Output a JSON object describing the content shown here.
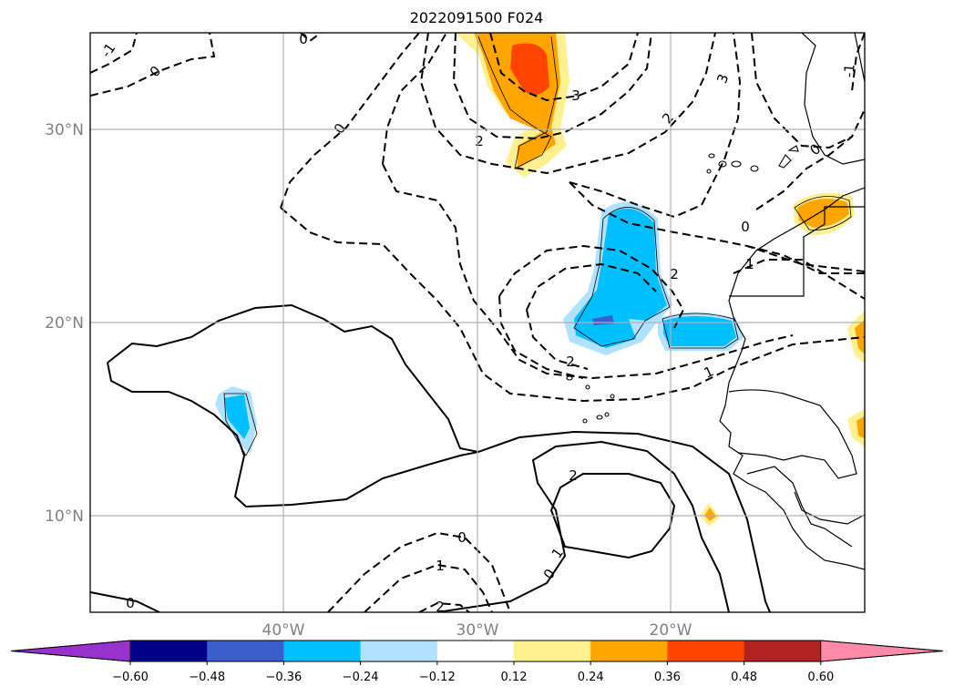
{
  "title": "2022091500 F024",
  "lat_labels": [
    "30°N",
    "20°N",
    "10°N"
  ],
  "lon_labels": [
    "40°W",
    "30°W",
    "20°W"
  ],
  "colorbar": {
    "ticks": [
      "−0.60",
      "−0.48",
      "−0.36",
      "−0.24",
      "−0.12",
      "0.12",
      "0.24",
      "0.36",
      "0.48",
      "0.60"
    ],
    "colors": [
      "#9932cc",
      "#00008b",
      "#3a5fcd",
      "#00bfff",
      "#b0e2ff",
      "#ffffff",
      "#fff08f",
      "#ffa500",
      "#ff4500",
      "#b22222",
      "#ff89a8"
    ]
  },
  "contour_labels": [
    "-1",
    "0",
    "0",
    "0",
    "2",
    "3",
    "2",
    "-1",
    "0",
    "0",
    "1",
    "2",
    "2",
    "1",
    "2",
    "1",
    "0",
    "0",
    "1",
    "2",
    "0",
    "3"
  ]
}
